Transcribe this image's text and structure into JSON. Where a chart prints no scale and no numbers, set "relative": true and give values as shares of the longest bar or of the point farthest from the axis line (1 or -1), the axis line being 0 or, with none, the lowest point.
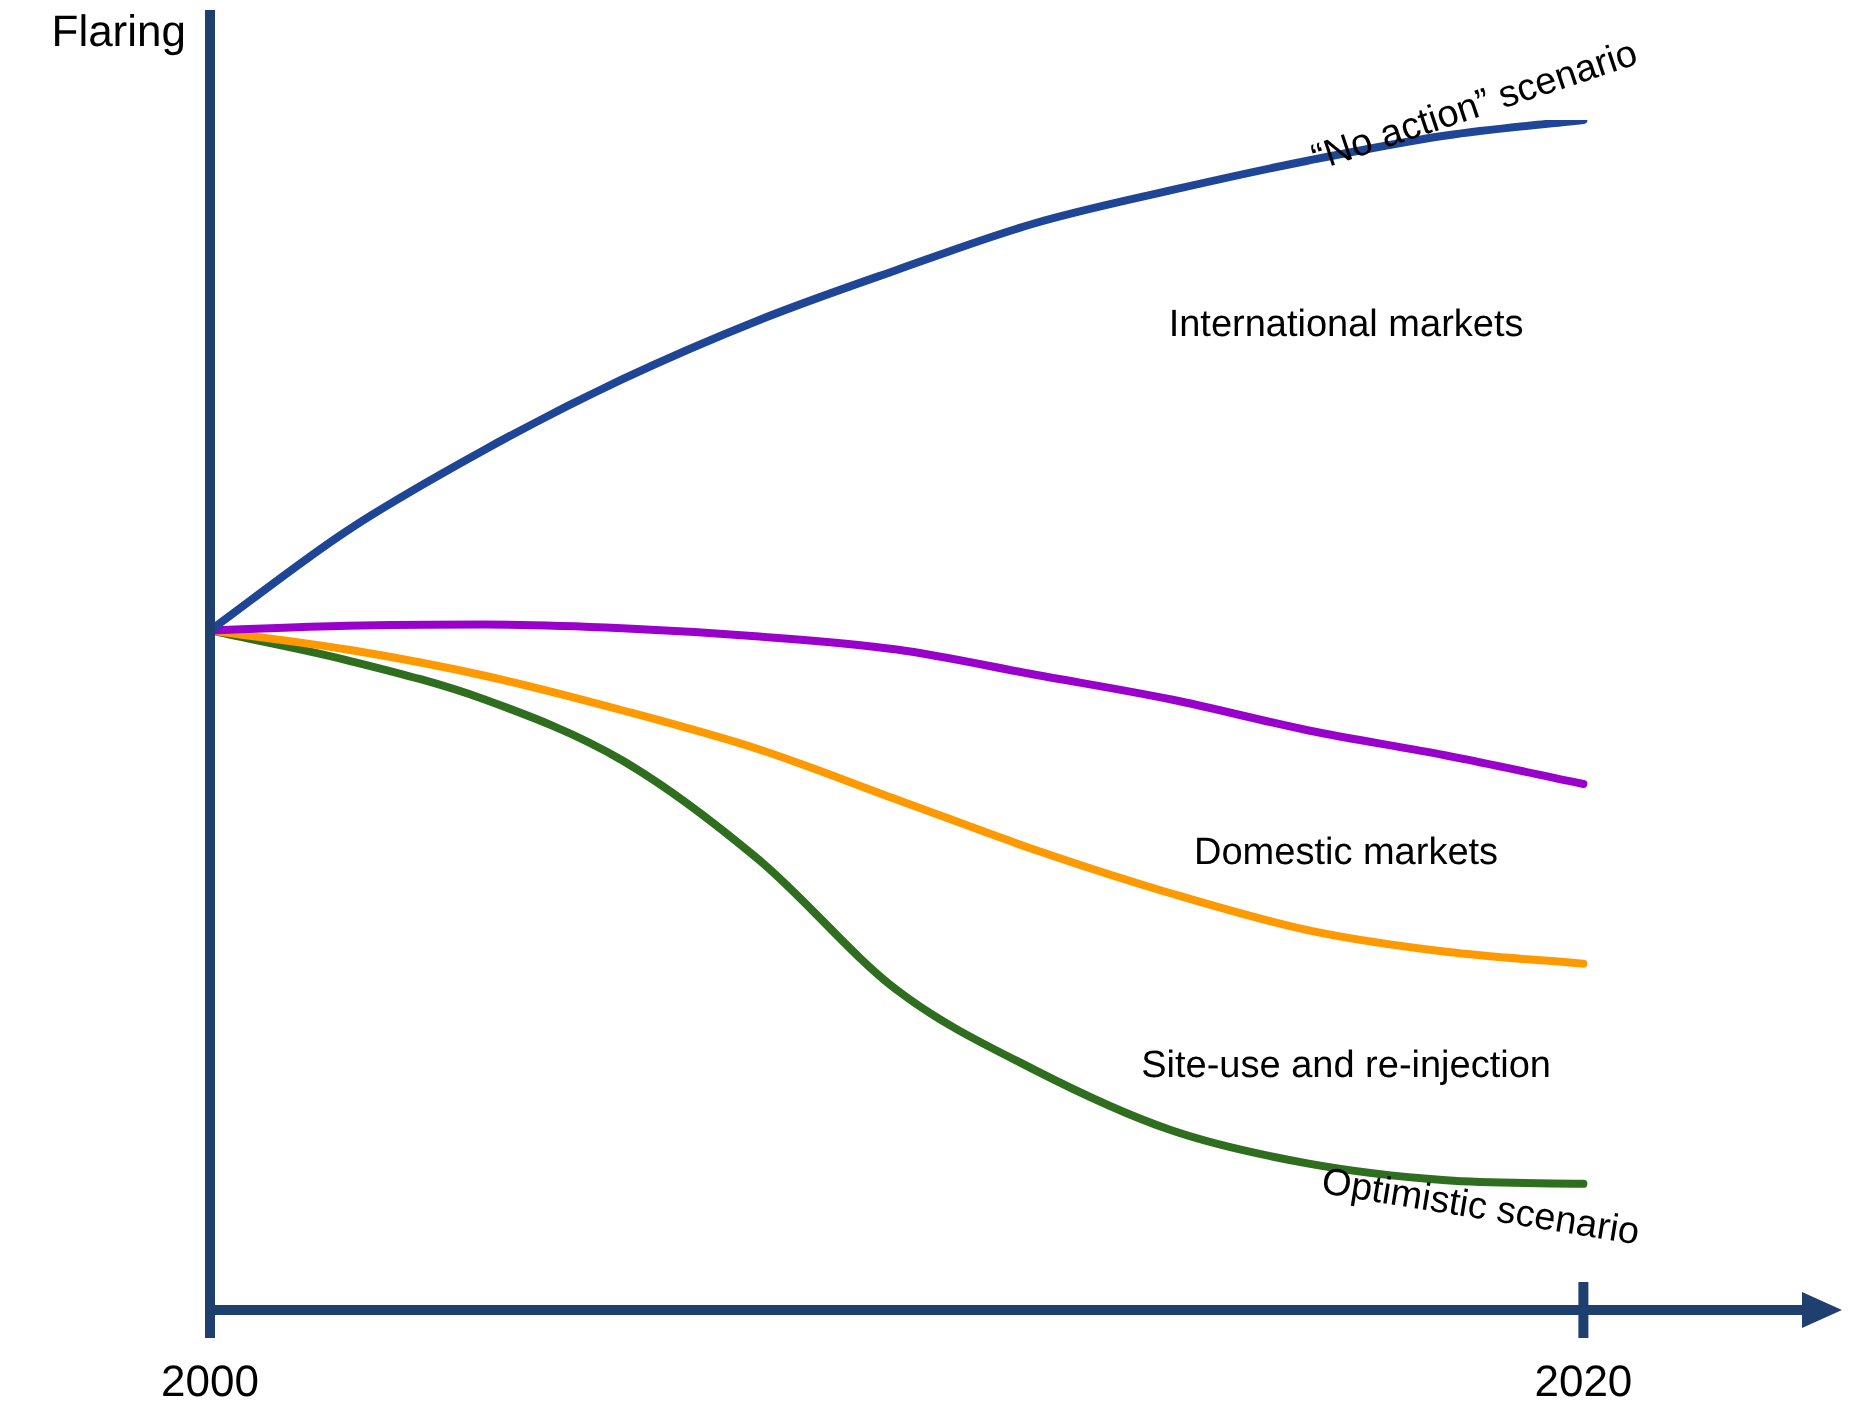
{
  "chart_data": {
    "type": "line",
    "relative": true,
    "ylabel": "Flaring",
    "xlim": [
      2000,
      2023.3
    ],
    "xticks": [
      2000,
      2020
    ],
    "grid": false,
    "legend": false,
    "marker": "none",
    "line_style": "solid",
    "x": [
      2000,
      2002,
      2004,
      2006,
      2008,
      2010,
      2012,
      2014,
      2016,
      2018,
      2020
    ],
    "series": [
      {
        "name": "“No action” scenario",
        "color": "#1f4596",
        "values": [
          0.571,
          0.655,
          0.723,
          0.782,
          0.832,
          0.874,
          0.913,
          0.941,
          0.966,
          0.987,
          1.0
        ]
      },
      {
        "color": "#9900cc",
        "values": [
          0.571,
          0.575,
          0.576,
          0.573,
          0.566,
          0.555,
          0.534,
          0.513,
          0.487,
          0.466,
          0.442
        ]
      },
      {
        "color": "#ff9900",
        "values": [
          0.571,
          0.555,
          0.533,
          0.504,
          0.471,
          0.429,
          0.387,
          0.35,
          0.319,
          0.301,
          0.291
        ]
      },
      {
        "name": "Optimistic scenario",
        "color": "#2e6e1e",
        "values": [
          0.571,
          0.546,
          0.513,
          0.462,
          0.378,
          0.269,
          0.202,
          0.151,
          0.123,
          0.109,
          0.106
        ]
      }
    ],
    "annotations": [
      "International markets",
      "Domestic markets",
      "Site-use and re-injection"
    ]
  }
}
